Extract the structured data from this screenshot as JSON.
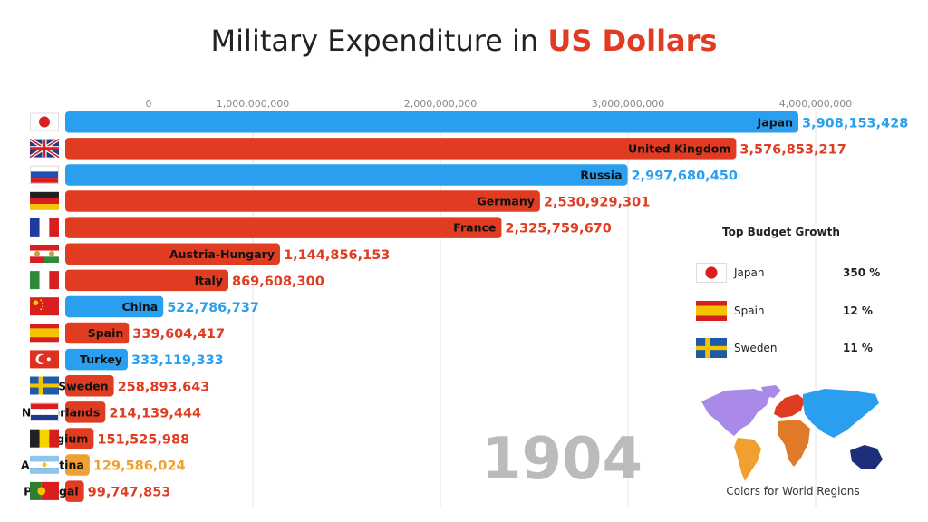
{
  "title": {
    "prefix": "Military Expenditure in ",
    "highlight": "US Dollars"
  },
  "colors": {
    "asia": "#2a9ff0",
    "europe": "#e03c22",
    "south_america": "#f0a030",
    "year": "#bbbbbb"
  },
  "year": "1904",
  "chart_data": {
    "type": "bar",
    "orientation": "horizontal",
    "title": "Military Expenditure in US Dollars",
    "xlim": [
      0,
      4000000000
    ],
    "x_ticks": [
      0,
      1000000000,
      2000000000,
      3000000000,
      4000000000
    ],
    "x_tick_labels": [
      "0",
      "1,000,000,000",
      "2,000,000,000",
      "3,000,000,000",
      "4,000,000,000"
    ],
    "grid": "vertical",
    "categories": [
      "Japan",
      "United Kingdom",
      "Russia",
      "Germany",
      "France",
      "Austria-Hungary",
      "Italy",
      "China",
      "Spain",
      "Turkey",
      "Sweden",
      "Netherlands",
      "Belgium",
      "Argentina",
      "Portugal"
    ],
    "values": [
      3908153428,
      3576853217,
      2997680450,
      2530929301,
      2325759670,
      1144856153,
      869608300,
      522786737,
      339604417,
      333119333,
      258893643,
      214139444,
      151525988,
      129586024,
      99747853
    ],
    "value_labels": [
      "3,908,153,428",
      "3,576,853,217",
      "2,997,680,450",
      "2,530,929,301",
      "2,325,759,670",
      "1,144,856,153",
      "869,608,300",
      "522,786,737",
      "339,604,417",
      "333,119,333",
      "258,893,643",
      "214,139,444",
      "151,525,988",
      "129,586,024",
      "99,747,853"
    ],
    "regions": [
      "asia",
      "europe",
      "asia",
      "europe",
      "europe",
      "europe",
      "europe",
      "asia",
      "europe",
      "asia",
      "europe",
      "europe",
      "europe",
      "south_america",
      "europe"
    ],
    "flags": [
      "japan",
      "united-kingdom",
      "russia",
      "germany",
      "france",
      "austria-hungary",
      "italy",
      "china",
      "spain",
      "turkey",
      "sweden",
      "netherlands",
      "belgium",
      "argentina",
      "portugal"
    ]
  },
  "growth": {
    "heading": "Top Budget Growth",
    "items": [
      {
        "name": "Japan",
        "value": "350 %",
        "flag": "japan"
      },
      {
        "name": "Spain",
        "value": "12 %",
        "flag": "spain"
      },
      {
        "name": "Sweden",
        "value": "11 %",
        "flag": "sweden"
      }
    ]
  },
  "map": {
    "caption": "Colors for World Regions",
    "colors": {
      "north_america": "#a98ae8",
      "south_america": "#f0a030",
      "europe": "#e03c22",
      "africa": "#e07a28",
      "asia": "#2a9ff0",
      "oceania": "#1e2f7a"
    }
  }
}
